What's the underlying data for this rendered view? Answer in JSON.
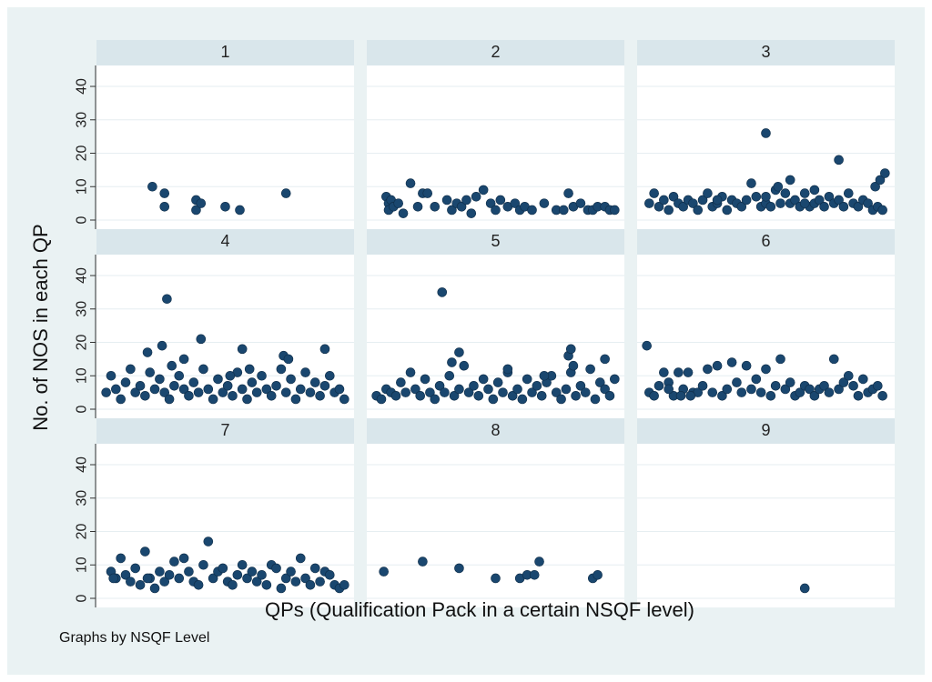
{
  "chart_data": {
    "type": "scatter",
    "layout": "small-multiples 3x3",
    "by_variable_note": "Graphs by NSQF Level",
    "xlabel": "QPs (Qualification Pack in a certain NSQF level)",
    "ylabel": "No. of NOS in each QP",
    "ylim": [
      0,
      43
    ],
    "yticks": [
      0,
      10,
      20,
      30,
      40
    ],
    "grid": "horizontal",
    "colors": {
      "outer_background": "#eaf2f3",
      "panel_background": "#ffffff",
      "strip_background": "#d9e6eb",
      "marker": "#1a476f",
      "grid": "#e6eef1"
    },
    "panels": [
      {
        "label": "1",
        "x": [
          0.2,
          0.25,
          0.25,
          0.38,
          0.38,
          0.4,
          0.5,
          0.56,
          0.75
        ],
        "y": [
          10,
          8,
          4,
          6,
          3,
          5,
          4,
          3,
          8
        ]
      },
      {
        "label": "2",
        "x": [
          0.05,
          0.06,
          0.06,
          0.07,
          0.08,
          0.1,
          0.12,
          0.15,
          0.18,
          0.2,
          0.22,
          0.25,
          0.3,
          0.32,
          0.34,
          0.36,
          0.38,
          0.4,
          0.42,
          0.45,
          0.48,
          0.5,
          0.52,
          0.55,
          0.58,
          0.6,
          0.62,
          0.65,
          0.7,
          0.75,
          0.78,
          0.8,
          0.82,
          0.85,
          0.88,
          0.9,
          0.92,
          0.95,
          0.97,
          0.99
        ],
        "y": [
          7,
          5,
          3,
          6,
          4,
          5,
          2,
          11,
          4,
          8,
          8,
          4,
          6,
          3,
          5,
          4,
          6,
          2,
          7,
          9,
          5,
          3,
          6,
          4,
          5,
          3,
          4,
          3,
          5,
          3,
          3,
          8,
          4,
          5,
          3,
          3,
          4,
          4,
          3,
          3
        ]
      },
      {
        "label": "3",
        "x": [
          0.02,
          0.04,
          0.06,
          0.08,
          0.1,
          0.12,
          0.14,
          0.16,
          0.18,
          0.2,
          0.22,
          0.24,
          0.26,
          0.28,
          0.3,
          0.32,
          0.34,
          0.36,
          0.38,
          0.4,
          0.42,
          0.44,
          0.46,
          0.48,
          0.5,
          0.52,
          0.54,
          0.56,
          0.58,
          0.6,
          0.62,
          0.64,
          0.66,
          0.68,
          0.7,
          0.72,
          0.74,
          0.76,
          0.78,
          0.8,
          0.82,
          0.84,
          0.86,
          0.88,
          0.9,
          0.92,
          0.94,
          0.95,
          0.96,
          0.97,
          0.98,
          0.99,
          0.3,
          0.5,
          0.6,
          0.66,
          0.7,
          0.5,
          0.55,
          0.8
        ],
        "y": [
          5,
          8,
          4,
          6,
          3,
          7,
          5,
          4,
          6,
          5,
          3,
          6,
          8,
          4,
          5,
          7,
          3,
          6,
          5,
          4,
          6,
          11,
          7,
          4,
          5,
          4,
          9,
          5,
          8,
          5,
          6,
          4,
          8,
          4,
          5,
          6,
          4,
          7,
          5,
          6,
          4,
          8,
          5,
          4,
          6,
          5,
          3,
          10,
          4,
          12,
          3,
          14,
          6,
          7,
          12,
          5,
          9,
          26,
          10,
          18
        ]
      },
      {
        "label": "4",
        "x": [
          0.01,
          0.03,
          0.05,
          0.07,
          0.09,
          0.11,
          0.13,
          0.15,
          0.17,
          0.19,
          0.21,
          0.23,
          0.25,
          0.27,
          0.29,
          0.31,
          0.33,
          0.35,
          0.37,
          0.39,
          0.41,
          0.43,
          0.45,
          0.47,
          0.49,
          0.51,
          0.53,
          0.55,
          0.57,
          0.59,
          0.61,
          0.63,
          0.65,
          0.67,
          0.69,
          0.71,
          0.73,
          0.75,
          0.77,
          0.79,
          0.81,
          0.83,
          0.85,
          0.87,
          0.89,
          0.91,
          0.93,
          0.95,
          0.97,
          0.99,
          0.24,
          0.26,
          0.28,
          0.4,
          0.33,
          0.57,
          0.6,
          0.74,
          0.76,
          0.91,
          0.18,
          0.52
        ],
        "y": [
          5,
          10,
          6,
          3,
          8,
          12,
          5,
          7,
          4,
          11,
          6,
          9,
          5,
          3,
          7,
          10,
          6,
          4,
          8,
          5,
          12,
          6,
          3,
          9,
          5,
          7,
          4,
          11,
          6,
          3,
          8,
          5,
          10,
          6,
          4,
          7,
          12,
          5,
          9,
          3,
          6,
          11,
          5,
          8,
          4,
          7,
          10,
          5,
          6,
          3,
          19,
          33,
          13,
          21,
          15,
          18,
          12,
          16,
          15,
          18,
          17,
          10
        ]
      },
      {
        "label": "5",
        "x": [
          0.01,
          0.03,
          0.05,
          0.07,
          0.09,
          0.11,
          0.13,
          0.15,
          0.17,
          0.19,
          0.21,
          0.23,
          0.25,
          0.27,
          0.29,
          0.31,
          0.33,
          0.35,
          0.37,
          0.39,
          0.41,
          0.43,
          0.45,
          0.47,
          0.49,
          0.51,
          0.53,
          0.55,
          0.57,
          0.59,
          0.61,
          0.63,
          0.65,
          0.67,
          0.69,
          0.71,
          0.73,
          0.75,
          0.77,
          0.79,
          0.81,
          0.83,
          0.85,
          0.87,
          0.89,
          0.91,
          0.93,
          0.95,
          0.97,
          0.99,
          0.28,
          0.32,
          0.35,
          0.55,
          0.8,
          0.81,
          0.82,
          0.7,
          0.95
        ],
        "y": [
          4,
          3,
          6,
          5,
          4,
          8,
          5,
          11,
          6,
          4,
          9,
          5,
          3,
          7,
          5,
          10,
          4,
          6,
          13,
          5,
          7,
          4,
          9,
          6,
          3,
          8,
          5,
          11,
          4,
          6,
          3,
          9,
          5,
          7,
          4,
          8,
          10,
          5,
          3,
          6,
          11,
          4,
          7,
          5,
          12,
          3,
          8,
          6,
          4,
          9,
          35,
          14,
          17,
          12,
          16,
          18,
          13,
          10,
          15
        ]
      },
      {
        "label": "6",
        "x": [
          0.02,
          0.04,
          0.06,
          0.08,
          0.1,
          0.12,
          0.14,
          0.16,
          0.18,
          0.2,
          0.22,
          0.24,
          0.26,
          0.28,
          0.3,
          0.32,
          0.34,
          0.36,
          0.38,
          0.4,
          0.42,
          0.44,
          0.46,
          0.48,
          0.5,
          0.52,
          0.54,
          0.56,
          0.58,
          0.6,
          0.62,
          0.64,
          0.66,
          0.68,
          0.7,
          0.72,
          0.74,
          0.76,
          0.78,
          0.8,
          0.82,
          0.84,
          0.86,
          0.88,
          0.9,
          0.92,
          0.94,
          0.96,
          0.98,
          0.01,
          0.1,
          0.15,
          0.19
        ],
        "y": [
          5,
          4,
          7,
          11,
          8,
          4,
          11,
          6,
          11,
          5,
          5,
          7,
          12,
          5,
          13,
          4,
          6,
          14,
          8,
          5,
          13,
          6,
          9,
          5,
          12,
          4,
          7,
          15,
          6,
          8,
          4,
          5,
          7,
          6,
          4,
          6,
          7,
          5,
          15,
          6,
          8,
          10,
          7,
          4,
          9,
          5,
          6,
          7,
          4,
          19,
          6,
          4,
          4
        ]
      },
      {
        "label": "7",
        "x": [
          0.03,
          0.05,
          0.07,
          0.09,
          0.11,
          0.13,
          0.15,
          0.17,
          0.19,
          0.21,
          0.23,
          0.25,
          0.27,
          0.29,
          0.31,
          0.33,
          0.35,
          0.37,
          0.39,
          0.41,
          0.43,
          0.45,
          0.47,
          0.49,
          0.51,
          0.53,
          0.55,
          0.57,
          0.59,
          0.61,
          0.63,
          0.65,
          0.67,
          0.69,
          0.71,
          0.73,
          0.75,
          0.77,
          0.79,
          0.81,
          0.83,
          0.85,
          0.87,
          0.89,
          0.91,
          0.93,
          0.95,
          0.97,
          0.99,
          0.04,
          0.18
        ],
        "y": [
          8,
          6,
          12,
          7,
          5,
          9,
          4,
          14,
          6,
          3,
          8,
          5,
          7,
          11,
          6,
          12,
          8,
          5,
          4,
          10,
          17,
          6,
          8,
          9,
          5,
          4,
          7,
          10,
          6,
          8,
          5,
          7,
          4,
          10,
          9,
          3,
          6,
          8,
          5,
          12,
          6,
          4,
          9,
          5,
          8,
          7,
          4,
          3,
          4,
          6,
          6
        ]
      },
      {
        "label": "8",
        "x": [
          0.04,
          0.2,
          0.35,
          0.5,
          0.6,
          0.63,
          0.66,
          0.68,
          0.9,
          0.92
        ],
        "y": [
          8,
          11,
          9,
          6,
          6,
          7,
          7,
          11,
          6,
          7
        ]
      },
      {
        "label": "9",
        "x": [
          0.66
        ],
        "y": [
          3
        ]
      }
    ]
  }
}
